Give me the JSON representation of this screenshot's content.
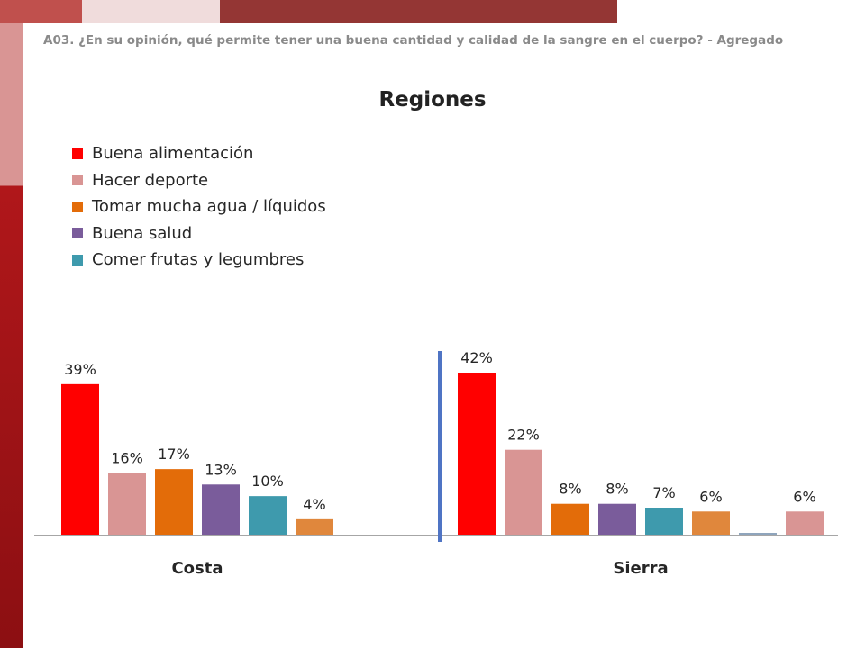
{
  "subtitle": "A03. ¿En su opinión, qué permite tener una buena cantidad y calidad de la sangre en el cuerpo? - Agregado",
  "theme": {
    "topbar": [
      "#c0504d",
      "#f0dcdc",
      "#943634"
    ],
    "sidebar_top": "#d99594",
    "sidebar_bottom": "#b0171a",
    "divider": "#4f74c4",
    "axis": "#a6a6a6"
  },
  "chart_data": {
    "type": "bar",
    "title": "Regiones",
    "legend": [
      {
        "label": "Buena alimentación",
        "color": "#ff0000"
      },
      {
        "label": "Hacer deporte",
        "color": "#d99594"
      },
      {
        "label": "Tomar mucha agua / líquidos",
        "color": "#e36c09"
      },
      {
        "label": "Buena salud",
        "color": "#7a5c9b"
      },
      {
        "label": "Comer frutas y legumbres",
        "color": "#3e9aad"
      }
    ],
    "ylim": [
      0,
      42
    ],
    "groups": [
      {
        "name": "Costa",
        "bars": [
          {
            "value": 39,
            "label": "39%",
            "color": "#ff0000"
          },
          {
            "value": 16,
            "label": "16%",
            "color": "#d99594"
          },
          {
            "value": 17,
            "label": "17%",
            "color": "#e36c09"
          },
          {
            "value": 13,
            "label": "13%",
            "color": "#7a5c9b"
          },
          {
            "value": 10,
            "label": "10%",
            "color": "#3e9aad"
          },
          {
            "value": 4,
            "label": "4%",
            "color": "#e0873c"
          }
        ]
      },
      {
        "name": "Sierra",
        "bars": [
          {
            "value": 42,
            "label": "42%",
            "color": "#ff0000"
          },
          {
            "value": 22,
            "label": "22%",
            "color": "#d99594"
          },
          {
            "value": 8,
            "label": "8%",
            "color": "#e36c09"
          },
          {
            "value": 8,
            "label": "8%",
            "color": "#7a5c9b"
          },
          {
            "value": 7,
            "label": "7%",
            "color": "#3e9aad"
          },
          {
            "value": 6,
            "label": "6%",
            "color": "#e0873c"
          },
          {
            "value": 0.3,
            "label": "",
            "color": "#8fa5bc"
          },
          {
            "value": 6,
            "label": "6%",
            "color": "#d99594"
          }
        ]
      }
    ]
  }
}
